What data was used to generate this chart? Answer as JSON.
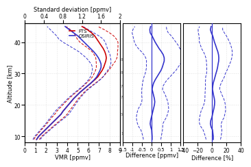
{
  "altitude": [
    9,
    10,
    11,
    12,
    13,
    14,
    15,
    16,
    17,
    18,
    19,
    20,
    21,
    22,
    23,
    24,
    25,
    26,
    27,
    28,
    29,
    30,
    31,
    32,
    33,
    34,
    35,
    36,
    37,
    38,
    39,
    40,
    41,
    42,
    43,
    44,
    45
  ],
  "fts_vmr": [
    1.1,
    1.3,
    1.6,
    1.9,
    2.2,
    2.5,
    2.8,
    3.1,
    3.4,
    3.6,
    3.85,
    4.1,
    4.35,
    4.6,
    4.9,
    5.2,
    5.55,
    5.9,
    6.25,
    6.6,
    6.9,
    7.1,
    7.3,
    7.45,
    7.55,
    7.65,
    7.7,
    7.65,
    7.55,
    7.4,
    7.2,
    7.0,
    6.8,
    6.6,
    6.3,
    5.9,
    5.4
  ],
  "osiris_vmr": [
    1.1,
    1.3,
    1.6,
    1.9,
    2.2,
    2.5,
    2.8,
    3.1,
    3.4,
    3.6,
    3.85,
    4.1,
    4.35,
    4.6,
    4.9,
    5.2,
    5.55,
    5.9,
    6.25,
    6.55,
    6.8,
    6.95,
    7.1,
    7.2,
    7.2,
    7.1,
    6.95,
    6.75,
    6.5,
    6.2,
    5.9,
    5.6,
    5.3,
    5.0,
    4.6,
    4.2,
    3.8
  ],
  "fts_std": [
    0.25,
    0.28,
    0.32,
    0.36,
    0.4,
    0.44,
    0.5,
    0.56,
    0.58,
    0.58,
    0.55,
    0.52,
    0.48,
    0.44,
    0.42,
    0.38,
    0.36,
    0.38,
    0.42,
    0.46,
    0.5,
    0.56,
    0.62,
    0.7,
    0.8,
    0.92,
    1.0,
    1.1,
    1.2,
    1.4,
    1.6,
    1.8,
    1.85,
    1.8,
    1.7,
    1.6,
    1.5
  ],
  "osiris_std": [
    0.35,
    0.38,
    0.42,
    0.46,
    0.5,
    0.55,
    0.62,
    0.7,
    0.74,
    0.74,
    0.7,
    0.65,
    0.6,
    0.56,
    0.52,
    0.48,
    0.45,
    0.46,
    0.5,
    0.55,
    0.6,
    0.65,
    0.72,
    0.82,
    0.92,
    1.05,
    1.15,
    1.3,
    1.42,
    1.6,
    1.8,
    2.0,
    2.1,
    2.0,
    1.9,
    1.8,
    1.7
  ],
  "diff_mean": [
    0.02,
    0.02,
    0.01,
    0.0,
    -0.05,
    -0.08,
    -0.06,
    -0.02,
    0.02,
    0.06,
    0.1,
    0.14,
    0.16,
    0.14,
    0.1,
    0.06,
    0.02,
    0.05,
    0.1,
    0.18,
    0.28,
    0.38,
    0.48,
    0.55,
    0.6,
    0.65,
    0.65,
    0.6,
    0.5,
    0.38,
    0.28,
    0.18,
    0.1,
    0.02,
    -0.08,
    -0.1,
    -0.06
  ],
  "diff_std": [
    0.45,
    0.48,
    0.52,
    0.56,
    0.62,
    0.66,
    0.72,
    0.78,
    0.8,
    0.8,
    0.78,
    0.72,
    0.68,
    0.64,
    0.62,
    0.58,
    0.54,
    0.54,
    0.58,
    0.62,
    0.68,
    0.72,
    0.78,
    0.82,
    0.88,
    0.92,
    0.96,
    1.0,
    1.04,
    1.08,
    1.1,
    1.08,
    1.04,
    1.0,
    0.94,
    0.88,
    0.82
  ],
  "diff_pct_mean": [
    1.5,
    1.5,
    1.0,
    0.5,
    -1.5,
    -2.5,
    -2.0,
    -0.5,
    0.5,
    1.5,
    2.5,
    3.2,
    3.5,
    3.0,
    2.0,
    1.2,
    0.4,
    0.8,
    1.5,
    2.8,
    4.0,
    5.2,
    6.5,
    7.5,
    8.2,
    9.0,
    9.2,
    8.8,
    7.8,
    6.2,
    4.8,
    3.2,
    2.0,
    0.8,
    -1.2,
    -2.5,
    -1.5
  ],
  "diff_pct_std": [
    10,
    11,
    12,
    13,
    14,
    15,
    16,
    17,
    17,
    17,
    16,
    15,
    14,
    13,
    12,
    11,
    10,
    10,
    11,
    12,
    13,
    13,
    14,
    15,
    16,
    17,
    18,
    19,
    20,
    21,
    21,
    21,
    20,
    19,
    18,
    17,
    16
  ],
  "n_labels": [
    {
      "text": "884",
      "alt": 34.5
    },
    {
      "text": "838",
      "alt": 30.5
    },
    {
      "text": "746",
      "alt": 26.0
    },
    {
      "text": "721",
      "alt": 22.5
    },
    {
      "text": "591",
      "alt": 17.0
    },
    {
      "text": "175",
      "alt": 11.0
    }
  ],
  "fts_color": "#cc0000",
  "osiris_color": "#3333cc",
  "diff_color": "#3333cc",
  "vmr_xlim": [
    0,
    9
  ],
  "vmr_xticks": [
    0,
    1,
    2,
    3,
    4,
    5,
    6,
    7,
    8,
    9
  ],
  "std_xlim": [
    0,
    2.0
  ],
  "std_xticks": [
    0,
    0.4,
    0.8,
    1.2,
    1.6,
    2.0
  ],
  "std_ticklabels": [
    "0",
    "0.4",
    "0.8",
    "1.2",
    "1.6",
    "2"
  ],
  "diff_xlim": [
    -1.5,
    1.5
  ],
  "diff_xticks": [
    -1.5,
    -1.0,
    -0.5,
    0.0,
    0.5,
    1.0,
    1.5
  ],
  "diff_ticklabels": [
    "-1.5",
    "-1",
    "-0.5",
    "0",
    "0.5",
    "1",
    "1.5"
  ],
  "diff_pct_xlim": [
    -40,
    40
  ],
  "diff_pct_xticks": [
    -40,
    -20,
    0,
    20,
    40
  ],
  "ylim": [
    8,
    46
  ],
  "yticks": [
    10,
    20,
    30,
    40
  ],
  "ylabel": "Altitude [km]",
  "xlabel_vmr": "VMR [ppmv]",
  "xlabel_diff": "Difference [ppmv]",
  "xlabel_diff_pct": "Difference [%]",
  "std_xlabel": "Standard deviation [ppmv]",
  "legend_fts": "FTS",
  "legend_osiris": "OSIRIS",
  "bg_color": "#ffffff"
}
